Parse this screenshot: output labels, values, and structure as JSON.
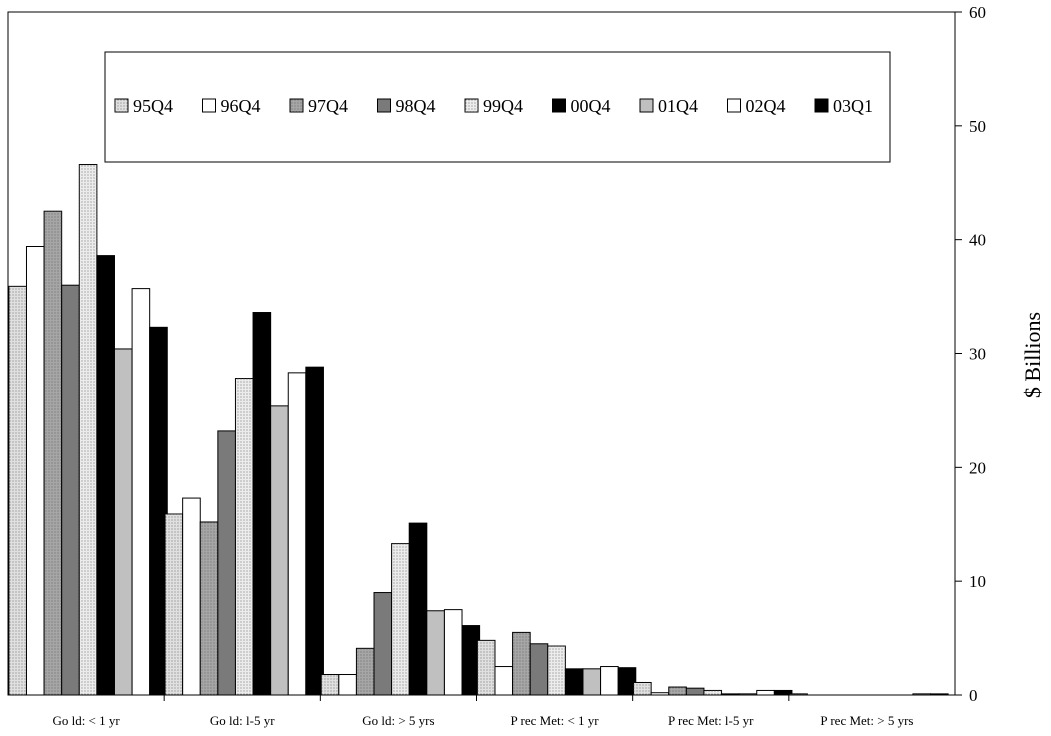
{
  "chart_data": {
    "type": "bar",
    "ylabel": "$ Billions",
    "ylim": [
      0,
      60
    ],
    "yticks": [
      0,
      10,
      20,
      30,
      40,
      50,
      60
    ],
    "y_axis_side": "right",
    "legend_position": "top",
    "categories": [
      "Go ld: < 1 yr",
      "Go ld: l-5 yr",
      "Go ld: > 5 yrs",
      "P rec Met: < 1 yr",
      "P rec Met: l-5 yr",
      "P rec Met: > 5 yrs"
    ],
    "series": [
      {
        "name": "95Q4",
        "values": [
          35.9,
          15.9,
          1.8,
          4.8,
          1.1,
          0.1
        ],
        "fill": "#e0e0e0",
        "pattern": "dots"
      },
      {
        "name": "96Q4",
        "values": [
          39.4,
          17.3,
          1.8,
          2.5,
          0.2,
          0.0
        ],
        "fill": "#ffffff",
        "pattern": "none"
      },
      {
        "name": "97Q4",
        "values": [
          42.5,
          15.2,
          4.1,
          5.5,
          0.7,
          0.0
        ],
        "fill": "#a6a6a6",
        "pattern": "dots"
      },
      {
        "name": "98Q4",
        "values": [
          36.0,
          23.2,
          9.0,
          4.5,
          0.6,
          0.0
        ],
        "fill": "#7a7a7a",
        "pattern": "none"
      },
      {
        "name": "99Q4",
        "values": [
          46.6,
          27.8,
          13.3,
          4.3,
          0.4,
          0.0
        ],
        "fill": "#ececec",
        "pattern": "dots"
      },
      {
        "name": "00Q4",
        "values": [
          38.6,
          33.6,
          15.1,
          2.3,
          0.1,
          0.0
        ],
        "fill": "#000000",
        "pattern": "none"
      },
      {
        "name": "01Q4",
        "values": [
          30.4,
          25.4,
          7.4,
          2.3,
          0.1,
          0.0
        ],
        "fill": "#c0c0c0",
        "pattern": "none"
      },
      {
        "name": "02Q4",
        "values": [
          35.7,
          28.3,
          7.5,
          2.5,
          0.4,
          0.1
        ],
        "fill": "#ffffff",
        "pattern": "none"
      },
      {
        "name": "03Q1",
        "values": [
          32.3,
          28.8,
          6.1,
          2.4,
          0.4,
          0.1
        ],
        "fill": "#000000",
        "pattern": "none"
      }
    ]
  }
}
